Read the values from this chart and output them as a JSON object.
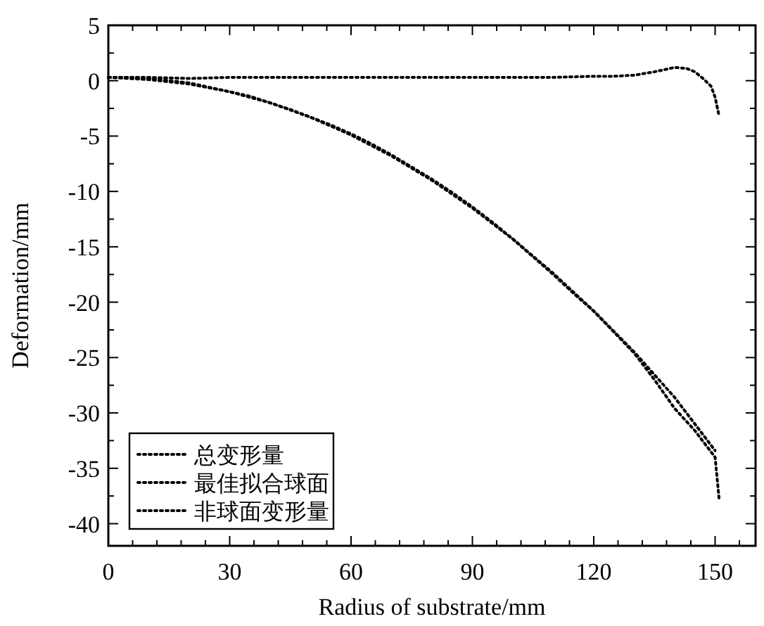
{
  "chart_data": {
    "type": "line",
    "xlabel": "Radius of substrate/mm",
    "ylabel": "Deformation/mm",
    "xlim": [
      0,
      160
    ],
    "ylim": [
      -42,
      5
    ],
    "xticks": [
      0,
      {
        "value": 6,
        "label": null
      },
      {
        "value": 12,
        "label": null
      },
      {
        "value": 18,
        "label": null
      },
      {
        "value": 24,
        "label": null
      },
      30,
      {
        "value": 36,
        "label": null
      },
      {
        "value": 42,
        "label": null
      },
      {
        "value": 48,
        "label": null
      },
      {
        "value": 54,
        "label": null
      },
      60,
      {
        "value": 66,
        "label": null
      },
      {
        "value": 72,
        "label": null
      },
      {
        "value": 78,
        "label": null
      },
      {
        "value": 84,
        "label": null
      },
      90,
      {
        "value": 96,
        "label": null
      },
      {
        "value": 102,
        "label": null
      },
      {
        "value": 108,
        "label": null
      },
      {
        "value": 114,
        "label": null
      },
      120,
      {
        "value": 126,
        "label": null
      },
      {
        "value": 132,
        "label": null
      },
      {
        "value": 138,
        "label": null
      },
      {
        "value": 144,
        "label": null
      },
      150,
      {
        "value": 156,
        "label": null
      }
    ],
    "yticks": [
      5,
      {
        "value": 2.5,
        "label": null
      },
      0,
      {
        "value": -2.5,
        "label": null
      },
      -5,
      {
        "value": -7.5,
        "label": null
      },
      -10,
      {
        "value": -12.5,
        "label": null
      },
      -15,
      {
        "value": -17.5,
        "label": null
      },
      -20,
      {
        "value": -22.5,
        "label": null
      },
      -25,
      {
        "value": -27.5,
        "label": null
      },
      -30,
      {
        "value": -32.5,
        "label": null
      },
      -35,
      {
        "value": -37.5,
        "label": null
      },
      -40
    ],
    "grid": false,
    "legend": "bottom left",
    "line_style": "dotted",
    "marker": "none",
    "series": [
      {
        "name": "总变形量",
        "color": "#000000",
        "x": [
          0,
          5,
          10,
          15,
          20,
          25,
          30,
          35,
          40,
          45,
          50,
          55,
          60,
          65,
          70,
          75,
          80,
          85,
          90,
          95,
          100,
          105,
          110,
          115,
          120,
          125,
          130,
          135,
          140,
          145,
          150,
          151
        ],
        "values": [
          0.3,
          0.3,
          0.2,
          0,
          -0.2,
          -0.6,
          -1.0,
          -1.4,
          -2.0,
          -2.6,
          -3.3,
          -4.0,
          -4.8,
          -5.7,
          -6.7,
          -7.8,
          -8.9,
          -10.1,
          -11.4,
          -12.8,
          -14.3,
          -15.9,
          -17.5,
          -19.2,
          -20.8,
          -22.7,
          -24.6,
          -27,
          -29.6,
          -31.6,
          -34,
          -37.8
        ]
      },
      {
        "name": "最佳拟合球面",
        "color": "#000000",
        "x": [
          0,
          10,
          20,
          30,
          40,
          50,
          60,
          70,
          80,
          90,
          100,
          110,
          120,
          130,
          140,
          150
        ],
        "values": [
          0.3,
          0.1,
          -0.3,
          -1.0,
          -2.0,
          -3.3,
          -4.9,
          -6.8,
          -9.0,
          -11.5,
          -14.3,
          -17.4,
          -20.8,
          -24.5,
          -28.6,
          -33.4
        ]
      },
      {
        "name": "非球面变形量",
        "color": "#000000",
        "x": [
          0,
          10,
          20,
          30,
          40,
          50,
          60,
          70,
          80,
          90,
          100,
          110,
          120,
          125,
          130,
          135,
          140,
          143,
          145,
          147,
          149,
          150,
          151
        ],
        "values": [
          0.3,
          0.3,
          0.2,
          0.3,
          0.3,
          0.3,
          0.3,
          0.3,
          0.3,
          0.3,
          0.3,
          0.3,
          0.4,
          0.4,
          0.5,
          0.8,
          1.2,
          1.1,
          0.8,
          0.2,
          -0.5,
          -1.5,
          -3.2
        ]
      }
    ]
  }
}
